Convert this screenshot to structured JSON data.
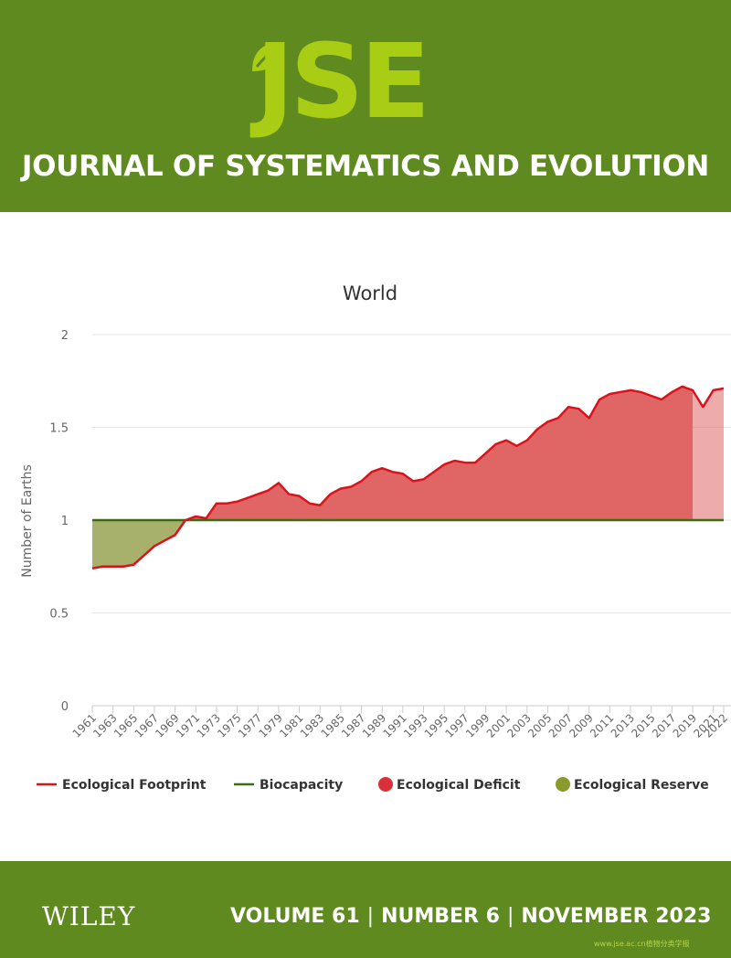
{
  "journal": {
    "logo_text": "JSE",
    "title": "JOURNAL OF SYSTEMATICS AND EVOLUTION",
    "publisher": "WILEY",
    "volume": "VOLUME 61",
    "number": "NUMBER 6",
    "date": "NOVEMBER 2023",
    "separator": "|",
    "url": "www.jse.ac.cn植物分类学报"
  },
  "colors": {
    "header_green": "#5f8a1f",
    "logo_green": "#a9cc14",
    "footprint_red": "#d9131c",
    "deficit_fill": "#e06666",
    "biocapacity_green": "#3d6b12",
    "reserve_fill": "#a3ad63"
  },
  "chart_data": {
    "type": "area",
    "title": "World",
    "ylabel": "Number of Earths",
    "xlabel": "",
    "ylim": [
      0,
      2
    ],
    "yticks": [
      "0",
      "0.5",
      "1",
      "1.5",
      "2"
    ],
    "xticks": [
      "1961",
      "1963",
      "1965",
      "1967",
      "1969",
      "1971",
      "1973",
      "1975",
      "1977",
      "1979",
      "1981",
      "1983",
      "1985",
      "1987",
      "1989",
      "1991",
      "1993",
      "1995",
      "1997",
      "1999",
      "2001",
      "2003",
      "2005",
      "2007",
      "2009",
      "2011",
      "2013",
      "2015",
      "2017",
      "2019",
      "2021",
      "2022"
    ],
    "legend_position": "bottom",
    "years": [
      1961,
      1962,
      1963,
      1964,
      1965,
      1966,
      1967,
      1968,
      1969,
      1970,
      1971,
      1972,
      1973,
      1974,
      1975,
      1976,
      1977,
      1978,
      1979,
      1980,
      1981,
      1982,
      1983,
      1984,
      1985,
      1986,
      1987,
      1988,
      1989,
      1990,
      1991,
      1992,
      1993,
      1994,
      1995,
      1996,
      1997,
      1998,
      1999,
      2000,
      2001,
      2002,
      2003,
      2004,
      2005,
      2006,
      2007,
      2008,
      2009,
      2010,
      2011,
      2012,
      2013,
      2014,
      2015,
      2016,
      2017,
      2018,
      2019,
      2020,
      2021,
      2022
    ],
    "series": [
      {
        "name": "Ecological Footprint",
        "values": [
          0.74,
          0.75,
          0.75,
          0.75,
          0.76,
          0.81,
          0.86,
          0.89,
          0.92,
          1.0,
          1.02,
          1.01,
          1.09,
          1.09,
          1.1,
          1.12,
          1.14,
          1.16,
          1.2,
          1.14,
          1.13,
          1.09,
          1.08,
          1.14,
          1.17,
          1.18,
          1.21,
          1.26,
          1.28,
          1.26,
          1.25,
          1.21,
          1.22,
          1.26,
          1.3,
          1.32,
          1.31,
          1.31,
          1.36,
          1.41,
          1.43,
          1.4,
          1.43,
          1.49,
          1.53,
          1.55,
          1.61,
          1.6,
          1.55,
          1.65,
          1.68,
          1.69,
          1.7,
          1.69,
          1.67,
          1.65,
          1.69,
          1.72,
          1.7,
          1.61,
          1.7,
          1.71
        ]
      },
      {
        "name": "Biocapacity",
        "values": [
          1,
          1,
          1,
          1,
          1,
          1,
          1,
          1,
          1,
          1,
          1,
          1,
          1,
          1,
          1,
          1,
          1,
          1,
          1,
          1,
          1,
          1,
          1,
          1,
          1,
          1,
          1,
          1,
          1,
          1,
          1,
          1,
          1,
          1,
          1,
          1,
          1,
          1,
          1,
          1,
          1,
          1,
          1,
          1,
          1,
          1,
          1,
          1,
          1,
          1,
          1,
          1,
          1,
          1,
          1,
          1,
          1,
          1,
          1,
          1,
          1,
          1
        ]
      }
    ],
    "legend": [
      "Ecological Footprint",
      "Biocapacity",
      "Ecological Deficit",
      "Ecological Reserve"
    ]
  }
}
